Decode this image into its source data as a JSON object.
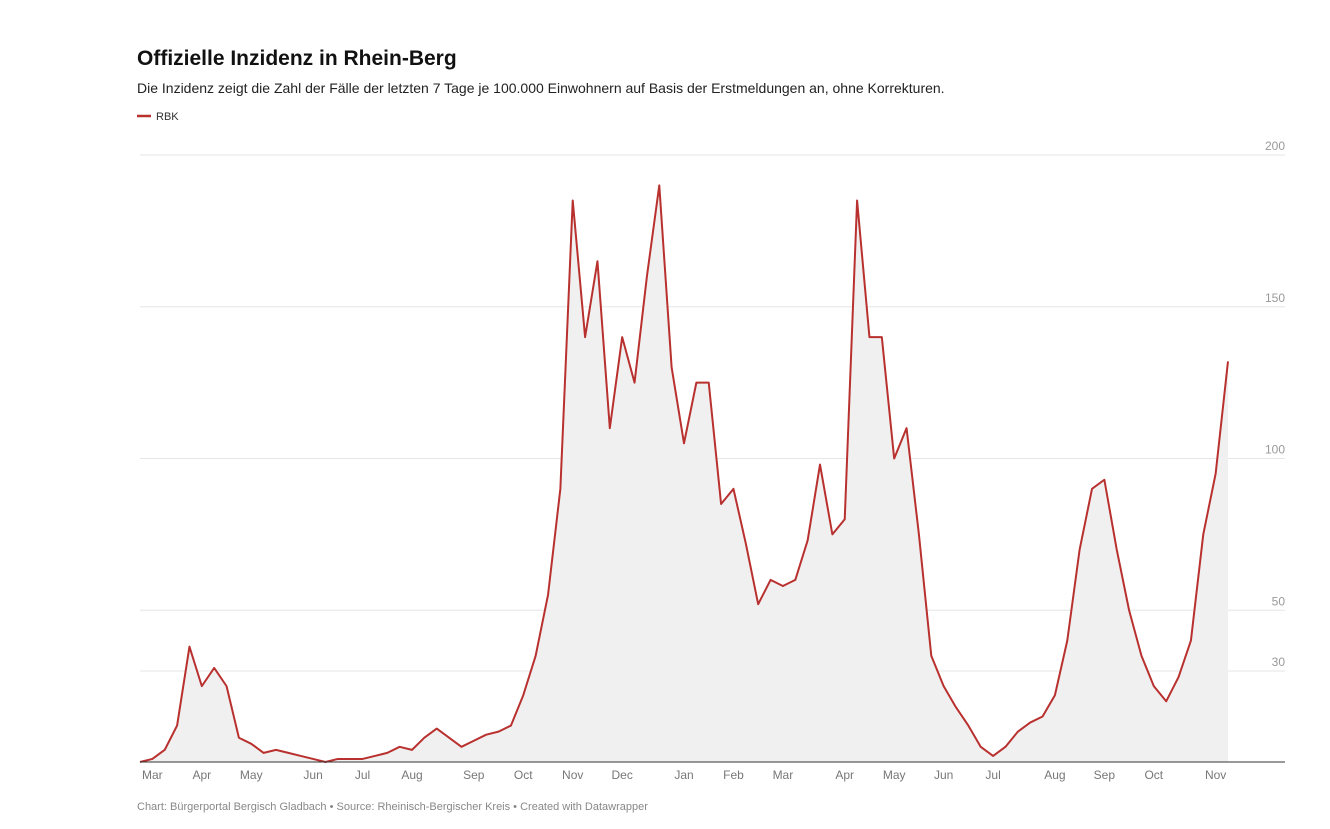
{
  "chart_data": {
    "type": "line",
    "title": "Offizielle Inzidenz in Rhein-Berg",
    "subtitle": "Die Inzidenz zeigt die Zahl der Fälle der letzten 7 Tage je 100.000 Einwohnern auf Basis der Erstmeldungen an, ohne Korrekturen.",
    "footer": "Chart: Bürgerportal Bergisch Gladbach • Source: Rheinisch-Bergischer Kreis • Created with Datawrapper",
    "categories": [
      null,
      "Mar",
      null,
      null,
      null,
      "Apr",
      null,
      null,
      null,
      "May",
      null,
      null,
      null,
      null,
      "Jun",
      null,
      null,
      null,
      "Jul",
      null,
      null,
      null,
      "Aug",
      null,
      null,
      null,
      null,
      "Sep",
      null,
      null,
      null,
      "Oct",
      null,
      null,
      null,
      "Nov",
      null,
      null,
      null,
      "Dec",
      null,
      null,
      null,
      null,
      "Jan",
      null,
      null,
      null,
      "Feb",
      null,
      null,
      null,
      "Mar",
      null,
      null,
      null,
      null,
      "Apr",
      null,
      null,
      null,
      "May",
      null,
      null,
      null,
      "Jun",
      null,
      null,
      null,
      "Jul",
      null,
      null,
      null,
      null,
      "Aug",
      null,
      null,
      null,
      "Sep",
      null,
      null,
      null,
      "Oct",
      null,
      null,
      null,
      null,
      "Nov",
      null
    ],
    "series": [
      {
        "name": "RBK",
        "color": "#b8312f",
        "values": [
          0,
          1,
          4,
          12,
          38,
          25,
          31,
          25,
          8,
          6,
          3,
          4,
          3,
          2,
          1,
          0,
          1,
          1,
          1,
          2,
          3,
          5,
          4,
          8,
          11,
          8,
          5,
          7,
          9,
          10,
          12,
          22,
          35,
          55,
          90,
          185,
          140,
          165,
          110,
          140,
          125,
          160,
          190,
          130,
          105,
          125,
          125,
          85,
          90,
          72,
          52,
          60,
          58,
          60,
          73,
          98,
          75,
          80,
          185,
          140,
          140,
          100,
          110,
          75,
          35,
          25,
          18,
          12,
          5,
          2,
          5,
          10,
          13,
          15,
          22,
          40,
          70,
          90,
          93,
          70,
          50,
          35,
          25,
          20,
          28,
          40,
          75,
          95,
          132
        ]
      }
    ],
    "ylim": [
      0,
      205
    ],
    "yticks": [
      30,
      50,
      100,
      150,
      200
    ],
    "grid": true,
    "area": true,
    "area_color": "#f0f0f0"
  }
}
